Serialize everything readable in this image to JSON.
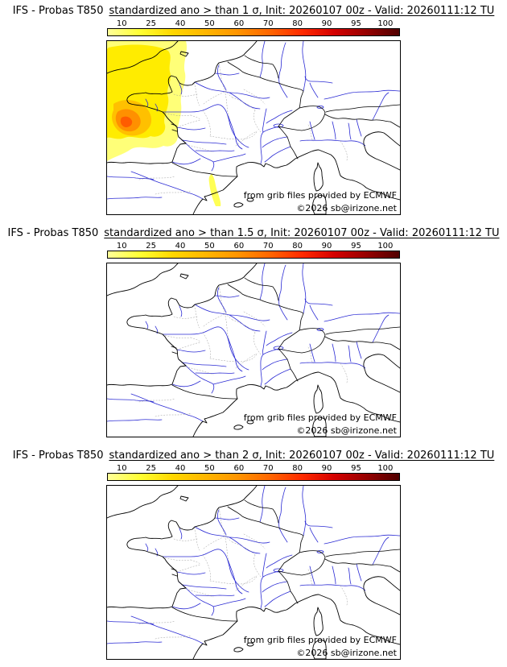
{
  "colorbar": {
    "tick_labels": [
      "10",
      "25",
      "40",
      "50",
      "60",
      "70",
      "80",
      "90",
      "95",
      "100"
    ],
    "colors": [
      "#ffff99",
      "#ffff33",
      "#ffd700",
      "#ffb700",
      "#ff9500",
      "#ff6600",
      "#ff2a00",
      "#d40000",
      "#960000",
      "#500000"
    ]
  },
  "credits": {
    "line1": "from grib files provided by ECMWF",
    "line2": "©2026 sb@irizone.net"
  },
  "map_colors": {
    "coastline": "#000000",
    "rivers": "#2b2bd4",
    "admin_borders": "#9a9a9a"
  },
  "panels": [
    {
      "title_prefix": "IFS - Probas T850",
      "title_main": "standardized ano > than 1 σ, Init: 20260107 00z - Valid: 20260111:12 TU"
    },
    {
      "title_prefix": "IFS - Probas T850",
      "title_main": "standardized ano > than 1.5 σ, Init: 20260107 00z - Valid: 20260111:12 TU"
    },
    {
      "title_prefix": "IFS - Probas T850",
      "title_main": "standardized ano > than 2 σ, Init: 20260107 00z - Valid: 20260111:12 TU"
    }
  ]
}
